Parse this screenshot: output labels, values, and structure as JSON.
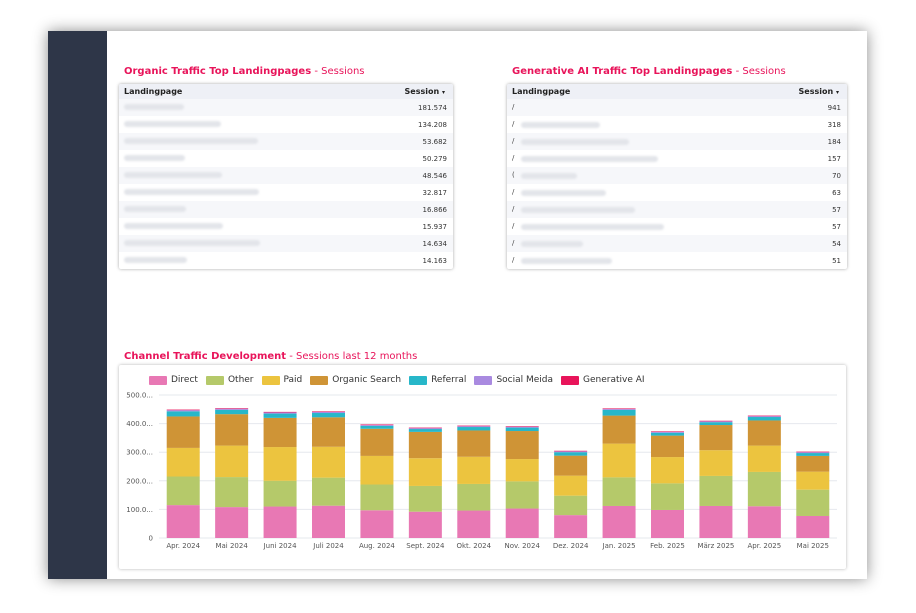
{
  "organic": {
    "title": "Organic Traffic Top Landingpages",
    "separator": "-",
    "subtitle": "Sessions",
    "col_landing": "Landingpage",
    "col_session": "Session",
    "sort_icon": "sort-desc-icon",
    "rows": [
      {
        "value": "181.574"
      },
      {
        "value": "134.208"
      },
      {
        "value": "53.682"
      },
      {
        "value": "50.279"
      },
      {
        "value": "48.546"
      },
      {
        "value": "32.817"
      },
      {
        "value": "16.866"
      },
      {
        "value": "15.937"
      },
      {
        "value": "14.634"
      },
      {
        "value": "14.163"
      }
    ]
  },
  "genai": {
    "title": "Generative AI Traffic Top Landingpages",
    "separator": "-",
    "subtitle": "Sessions",
    "col_landing": "Landingpage",
    "col_session": "Session",
    "sort_icon": "sort-desc-icon",
    "rows": [
      {
        "prefix": "/",
        "value": "941"
      },
      {
        "prefix": "/",
        "value": "318"
      },
      {
        "prefix": "/",
        "value": "184"
      },
      {
        "prefix": "/",
        "value": "157"
      },
      {
        "prefix": "(",
        "value": "70"
      },
      {
        "prefix": "/",
        "value": "63"
      },
      {
        "prefix": "/",
        "value": "57"
      },
      {
        "prefix": "/",
        "value": "57"
      },
      {
        "prefix": "/",
        "value": "54"
      },
      {
        "prefix": "/",
        "value": "51"
      }
    ]
  },
  "channel": {
    "title": "Channel Traffic Development",
    "separator": "-",
    "subtitle": "Sessions last 12 months"
  },
  "colors": {
    "accent": "#e8145a",
    "sidebar": "#2e3648"
  },
  "chart_data": {
    "type": "bar",
    "stacked": true,
    "categories": [
      "Apr. 2024",
      "Mai 2024",
      "Juni 2024",
      "Juli 2024",
      "Aug. 2024",
      "Sept. 2024",
      "Okt. 2024",
      "Nov. 2024",
      "Dez. 2024",
      "Jan. 2025",
      "Feb. 2025",
      "März 2025",
      "Apr. 2025",
      "Mai 2025"
    ],
    "y_ticks": [
      "0",
      "100.0...",
      "200.0...",
      "300.0...",
      "400.0...",
      "500.0..."
    ],
    "ylim": [
      0,
      500000
    ],
    "grid": true,
    "legend_position": "top",
    "series": [
      {
        "name": "Direct",
        "color": "#e878b4",
        "values": [
          115000,
          108000,
          110000,
          113000,
          97000,
          92000,
          96000,
          103000,
          80000,
          112000,
          98000,
          112000,
          111000,
          77000
        ]
      },
      {
        "name": "Other",
        "color": "#b5c96a",
        "values": [
          100000,
          105000,
          90000,
          98000,
          90000,
          90000,
          93000,
          95000,
          68000,
          100000,
          93000,
          105000,
          120000,
          92000
        ]
      },
      {
        "name": "Paid",
        "color": "#ecc43f",
        "values": [
          100000,
          110000,
          118000,
          108000,
          100000,
          97000,
          95000,
          78000,
          70000,
          118000,
          92000,
          90000,
          92000,
          63000
        ]
      },
      {
        "name": "Organic Search",
        "color": "#cf9436",
        "values": [
          110000,
          110000,
          102000,
          103000,
          95000,
          92000,
          92000,
          98000,
          70000,
          98000,
          75000,
          88000,
          88000,
          55000
        ]
      },
      {
        "name": "Referral",
        "color": "#27b7c9",
        "values": [
          18000,
          15000,
          15000,
          15000,
          10000,
          10000,
          12000,
          12000,
          12000,
          20000,
          10000,
          10000,
          12000,
          10000
        ]
      },
      {
        "name": "Social Meida",
        "color": "#a98ae0",
        "values": [
          4000,
          4000,
          4000,
          4000,
          3000,
          3000,
          3000,
          3000,
          3000,
          3000,
          3000,
          3000,
          3000,
          3000
        ]
      },
      {
        "name": "Generative AI",
        "color": "#e8145a",
        "values": [
          2000,
          2000,
          2000,
          2000,
          2000,
          2000,
          2000,
          2000,
          2000,
          2000,
          2000,
          2000,
          2000,
          2000
        ]
      }
    ]
  }
}
